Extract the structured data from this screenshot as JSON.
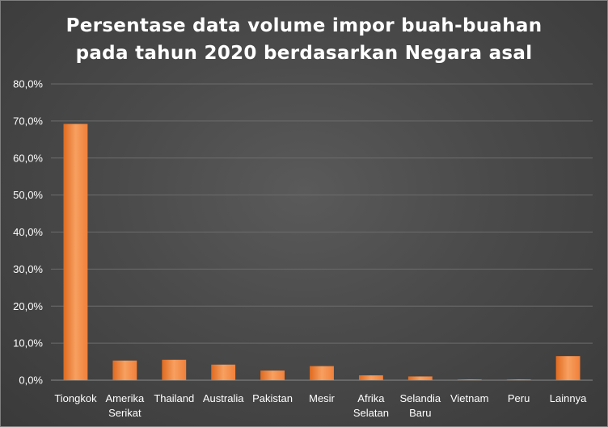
{
  "chart_data": {
    "type": "bar",
    "title_lines": [
      "Persentase data volume impor buah-buahan",
      "pada tahun 2020 berdasarkan Negara asal"
    ],
    "categories": [
      [
        "Tiongkok"
      ],
      [
        "Amerika",
        "Serikat"
      ],
      [
        "Thailand"
      ],
      [
        "Australia"
      ],
      [
        "Pakistan"
      ],
      [
        "Mesir"
      ],
      [
        "Afrika",
        "Selatan"
      ],
      [
        "Selandia",
        "Baru"
      ],
      [
        "Vietnam"
      ],
      [
        "Peru"
      ],
      [
        "Lainnya"
      ]
    ],
    "values": [
      69.2,
      5.3,
      5.5,
      4.2,
      2.6,
      3.8,
      1.3,
      1.0,
      0.2,
      0.2,
      6.5
    ],
    "y_ticks": [
      "0,0%",
      "10,0%",
      "20,0%",
      "30,0%",
      "40,0%",
      "50,0%",
      "60,0%",
      "70,0%",
      "80,0%"
    ],
    "ylim": [
      0,
      80
    ],
    "grid": true,
    "legend": "none",
    "bar_color": "#f0803a",
    "bar_color_light": "#f7a060",
    "bar_color_dark": "#e06a1f",
    "gridline_color": "#6c6c6c",
    "background_color": "#474747"
  }
}
